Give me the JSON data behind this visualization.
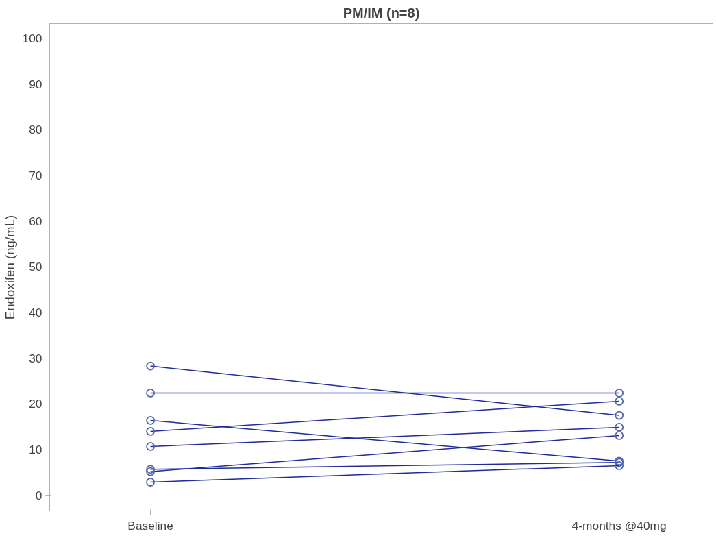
{
  "chart_data": {
    "type": "line",
    "title": "PM/IM (n=8)",
    "ylabel": "Endoxifen (ng/mL)",
    "categories": [
      "Baseline",
      "4-months @40mg"
    ],
    "ylim": [
      -3.4,
      103.2
    ],
    "yticks": [
      0,
      10,
      20,
      30,
      40,
      50,
      60,
      70,
      80,
      90,
      100
    ],
    "marker": "circle",
    "line_style": "solid",
    "series": [
      {
        "color": "#1f2a9c",
        "values": [
          28.3,
          17.5
        ]
      },
      {
        "color": "#1f2a9c",
        "values": [
          22.4,
          22.4
        ]
      },
      {
        "color": "#1f2a9c",
        "values": [
          16.4,
          7.5
        ]
      },
      {
        "color": "#1f2a9c",
        "values": [
          14.0,
          20.6
        ]
      },
      {
        "color": "#1f2a9c",
        "values": [
          10.7,
          14.9
        ]
      },
      {
        "color": "#1f2a9c",
        "values": [
          5.7,
          7.2
        ]
      },
      {
        "color": "#1f2a9c",
        "values": [
          5.2,
          13.1
        ]
      },
      {
        "color": "#1f2a9c",
        "values": [
          2.9,
          6.5
        ]
      }
    ]
  }
}
